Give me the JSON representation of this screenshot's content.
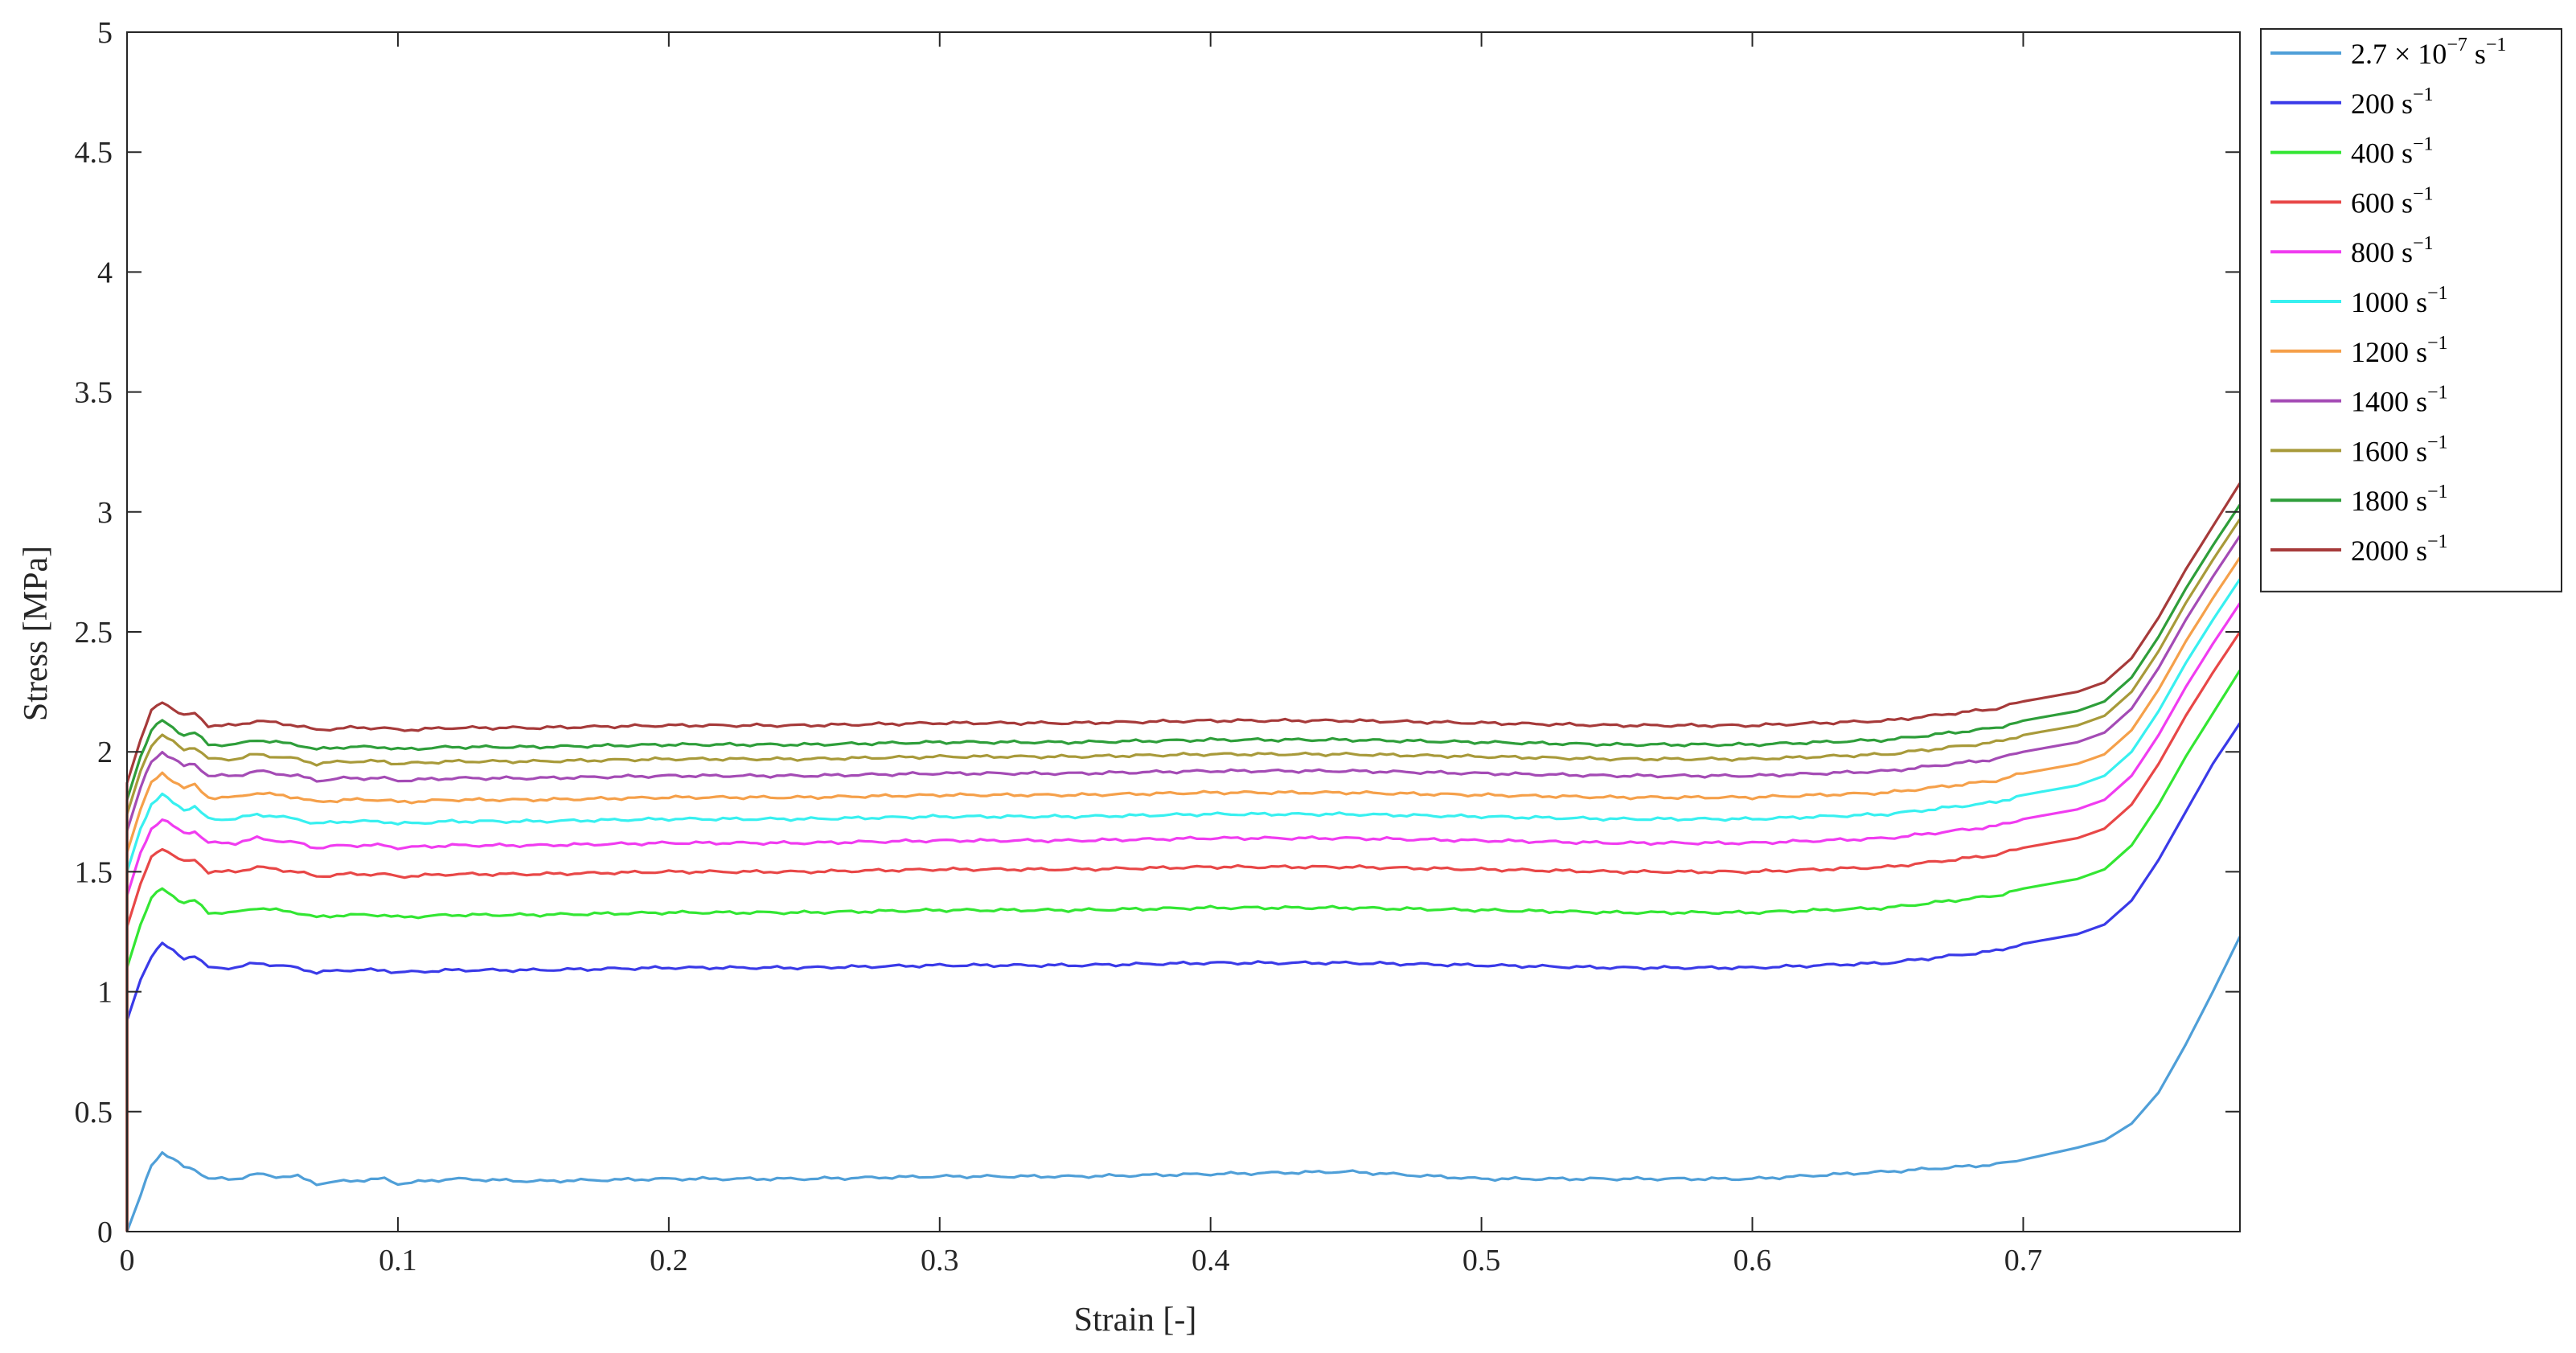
{
  "chart_data": {
    "type": "line",
    "title": "",
    "xlabel": "Strain [-]",
    "ylabel": "Stress [MPa]",
    "xlim": [
      0,
      0.78
    ],
    "ylim": [
      0,
      5
    ],
    "xticks": [
      0,
      0.1,
      0.2,
      0.3,
      0.4,
      0.5,
      0.6,
      0.7
    ],
    "xtick_labels": [
      "0",
      "0.1",
      "0.2",
      "0.3",
      "0.4",
      "0.5",
      "0.6",
      "0.7"
    ],
    "yticks": [
      0,
      0.5,
      1,
      1.5,
      2,
      2.5,
      3,
      3.5,
      4,
      4.5,
      5
    ],
    "ytick_labels": [
      "0",
      "0.5",
      "1",
      "1.5",
      "2",
      "2.5",
      "3",
      "3.5",
      "4",
      "4.5",
      "5"
    ],
    "grid": false,
    "legend_position": "outside-top-right",
    "strain_points": [
      0,
      0.005,
      0.009,
      0.013,
      0.017,
      0.021,
      0.025,
      0.03,
      0.04,
      0.048,
      0.055,
      0.063,
      0.07,
      0.08,
      0.095,
      0.1,
      0.12,
      0.15,
      0.2,
      0.25,
      0.3,
      0.35,
      0.4,
      0.45,
      0.5,
      0.55,
      0.6,
      0.65,
      0.69,
      0.7,
      0.72,
      0.73,
      0.74,
      0.75,
      0.76,
      0.77,
      0.78
    ],
    "series": [
      {
        "name": "2.7 × 10",
        "sup": "−7",
        "unit": "s",
        "unit_sup": "−1",
        "color": "#4f9fd8",
        "values": [
          0.0,
          0.15,
          0.28,
          0.33,
          0.3,
          0.27,
          0.26,
          0.22,
          0.22,
          0.24,
          0.23,
          0.23,
          0.2,
          0.21,
          0.22,
          0.2,
          0.22,
          0.21,
          0.22,
          0.22,
          0.23,
          0.23,
          0.24,
          0.25,
          0.22,
          0.22,
          0.22,
          0.25,
          0.28,
          0.3,
          0.35,
          0.38,
          0.45,
          0.58,
          0.78,
          1.0,
          1.23
        ]
      },
      {
        "name": "200",
        "unit": "s",
        "unit_sup": "−1",
        "color": "#3a3ae8",
        "values": [
          0.88,
          1.05,
          1.15,
          1.2,
          1.17,
          1.14,
          1.15,
          1.1,
          1.1,
          1.12,
          1.11,
          1.1,
          1.08,
          1.09,
          1.09,
          1.08,
          1.09,
          1.09,
          1.1,
          1.1,
          1.11,
          1.11,
          1.12,
          1.12,
          1.11,
          1.1,
          1.1,
          1.12,
          1.17,
          1.2,
          1.24,
          1.28,
          1.38,
          1.55,
          1.75,
          1.95,
          2.12
        ]
      },
      {
        "name": "400",
        "unit": "s",
        "unit_sup": "−1",
        "color": "#33e633",
        "values": [
          1.1,
          1.28,
          1.39,
          1.43,
          1.4,
          1.37,
          1.38,
          1.33,
          1.33,
          1.35,
          1.34,
          1.33,
          1.31,
          1.32,
          1.32,
          1.31,
          1.32,
          1.32,
          1.33,
          1.33,
          1.34,
          1.34,
          1.35,
          1.35,
          1.34,
          1.33,
          1.33,
          1.35,
          1.4,
          1.43,
          1.47,
          1.51,
          1.61,
          1.78,
          1.98,
          2.16,
          2.34
        ]
      },
      {
        "name": "600",
        "unit": "s",
        "unit_sup": "−1",
        "color": "#e84747",
        "values": [
          1.27,
          1.45,
          1.56,
          1.6,
          1.57,
          1.54,
          1.55,
          1.5,
          1.5,
          1.52,
          1.51,
          1.5,
          1.48,
          1.49,
          1.49,
          1.48,
          1.49,
          1.49,
          1.5,
          1.5,
          1.51,
          1.51,
          1.52,
          1.52,
          1.51,
          1.5,
          1.5,
          1.52,
          1.57,
          1.6,
          1.64,
          1.68,
          1.78,
          1.95,
          2.15,
          2.33,
          2.5
        ]
      },
      {
        "name": "800",
        "unit": "s",
        "unit_sup": "−1",
        "color": "#f03cf0",
        "values": [
          1.4,
          1.58,
          1.68,
          1.72,
          1.69,
          1.66,
          1.67,
          1.62,
          1.62,
          1.64,
          1.63,
          1.62,
          1.6,
          1.61,
          1.61,
          1.6,
          1.61,
          1.61,
          1.62,
          1.62,
          1.63,
          1.63,
          1.64,
          1.64,
          1.63,
          1.62,
          1.62,
          1.64,
          1.69,
          1.72,
          1.76,
          1.8,
          1.9,
          2.07,
          2.27,
          2.45,
          2.62
        ]
      },
      {
        "name": "1000",
        "unit": "s",
        "unit_sup": "−1",
        "color": "#38f0f0",
        "values": [
          1.5,
          1.68,
          1.78,
          1.82,
          1.79,
          1.76,
          1.77,
          1.72,
          1.72,
          1.74,
          1.73,
          1.72,
          1.7,
          1.71,
          1.71,
          1.7,
          1.71,
          1.71,
          1.72,
          1.72,
          1.73,
          1.73,
          1.74,
          1.74,
          1.73,
          1.72,
          1.72,
          1.74,
          1.79,
          1.82,
          1.86,
          1.9,
          2.0,
          2.17,
          2.37,
          2.55,
          2.72
        ]
      },
      {
        "name": "1200",
        "unit": "s",
        "unit_sup": "−1",
        "color": "#f5a04a",
        "values": [
          1.58,
          1.76,
          1.87,
          1.91,
          1.88,
          1.85,
          1.86,
          1.81,
          1.81,
          1.83,
          1.82,
          1.81,
          1.79,
          1.8,
          1.8,
          1.79,
          1.8,
          1.8,
          1.81,
          1.81,
          1.82,
          1.82,
          1.83,
          1.83,
          1.82,
          1.81,
          1.81,
          1.83,
          1.88,
          1.91,
          1.95,
          1.99,
          2.09,
          2.26,
          2.46,
          2.64,
          2.81
        ]
      },
      {
        "name": "1400",
        "unit": "s",
        "unit_sup": "−1",
        "color": "#a44bb5",
        "values": [
          1.67,
          1.85,
          1.96,
          2.0,
          1.97,
          1.94,
          1.95,
          1.9,
          1.9,
          1.92,
          1.91,
          1.9,
          1.88,
          1.89,
          1.89,
          1.88,
          1.89,
          1.89,
          1.9,
          1.9,
          1.91,
          1.91,
          1.92,
          1.92,
          1.91,
          1.9,
          1.9,
          1.92,
          1.97,
          2.0,
          2.04,
          2.08,
          2.18,
          2.35,
          2.55,
          2.73,
          2.9
        ]
      },
      {
        "name": "1600",
        "unit": "s",
        "unit_sup": "−1",
        "color": "#a89a3a",
        "values": [
          1.74,
          1.92,
          2.03,
          2.07,
          2.04,
          2.01,
          2.02,
          1.97,
          1.97,
          1.99,
          1.98,
          1.97,
          1.95,
          1.96,
          1.96,
          1.95,
          1.96,
          1.96,
          1.97,
          1.97,
          1.98,
          1.98,
          1.99,
          1.99,
          1.98,
          1.97,
          1.97,
          1.99,
          2.04,
          2.07,
          2.11,
          2.15,
          2.25,
          2.42,
          2.62,
          2.8,
          2.97
        ]
      },
      {
        "name": "1800",
        "unit": "s",
        "unit_sup": "−1",
        "color": "#2e9e3a",
        "values": [
          1.8,
          1.98,
          2.09,
          2.13,
          2.1,
          2.07,
          2.08,
          2.03,
          2.03,
          2.05,
          2.04,
          2.03,
          2.01,
          2.02,
          2.02,
          2.01,
          2.02,
          2.02,
          2.03,
          2.03,
          2.04,
          2.04,
          2.05,
          2.05,
          2.04,
          2.03,
          2.03,
          2.05,
          2.1,
          2.13,
          2.17,
          2.21,
          2.31,
          2.48,
          2.68,
          2.86,
          3.03
        ]
      },
      {
        "name": "2000",
        "unit": "s",
        "unit_sup": "−1",
        "color": "#a63a3a",
        "values": [
          1.87,
          2.05,
          2.17,
          2.21,
          2.18,
          2.15,
          2.16,
          2.11,
          2.11,
          2.13,
          2.12,
          2.11,
          2.09,
          2.1,
          2.1,
          2.09,
          2.1,
          2.1,
          2.11,
          2.11,
          2.12,
          2.12,
          2.13,
          2.13,
          2.12,
          2.11,
          2.11,
          2.13,
          2.18,
          2.21,
          2.25,
          2.29,
          2.39,
          2.56,
          2.76,
          2.94,
          3.12
        ]
      }
    ]
  }
}
